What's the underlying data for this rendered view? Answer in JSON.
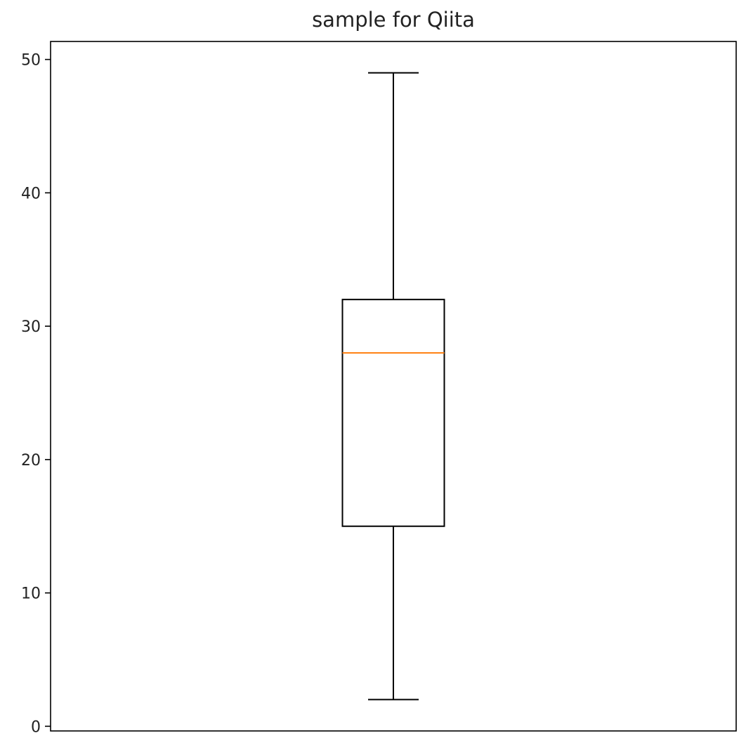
{
  "chart_data": {
    "type": "box",
    "title": "sample for Qiita",
    "xlabel": "",
    "ylabel": "",
    "ylim": [
      -0.35,
      51.35
    ],
    "yticks": [
      0,
      10,
      20,
      30,
      40,
      50
    ],
    "ytick_labels": [
      "0",
      "10",
      "20",
      "30",
      "40",
      "50"
    ],
    "grid": false,
    "boxes": [
      {
        "whisker_low": 2,
        "q1": 15,
        "median": 28,
        "q3": 32,
        "whisker_high": 49
      }
    ],
    "colors": {
      "box": "#000000",
      "median": "#ff7f0e"
    }
  }
}
